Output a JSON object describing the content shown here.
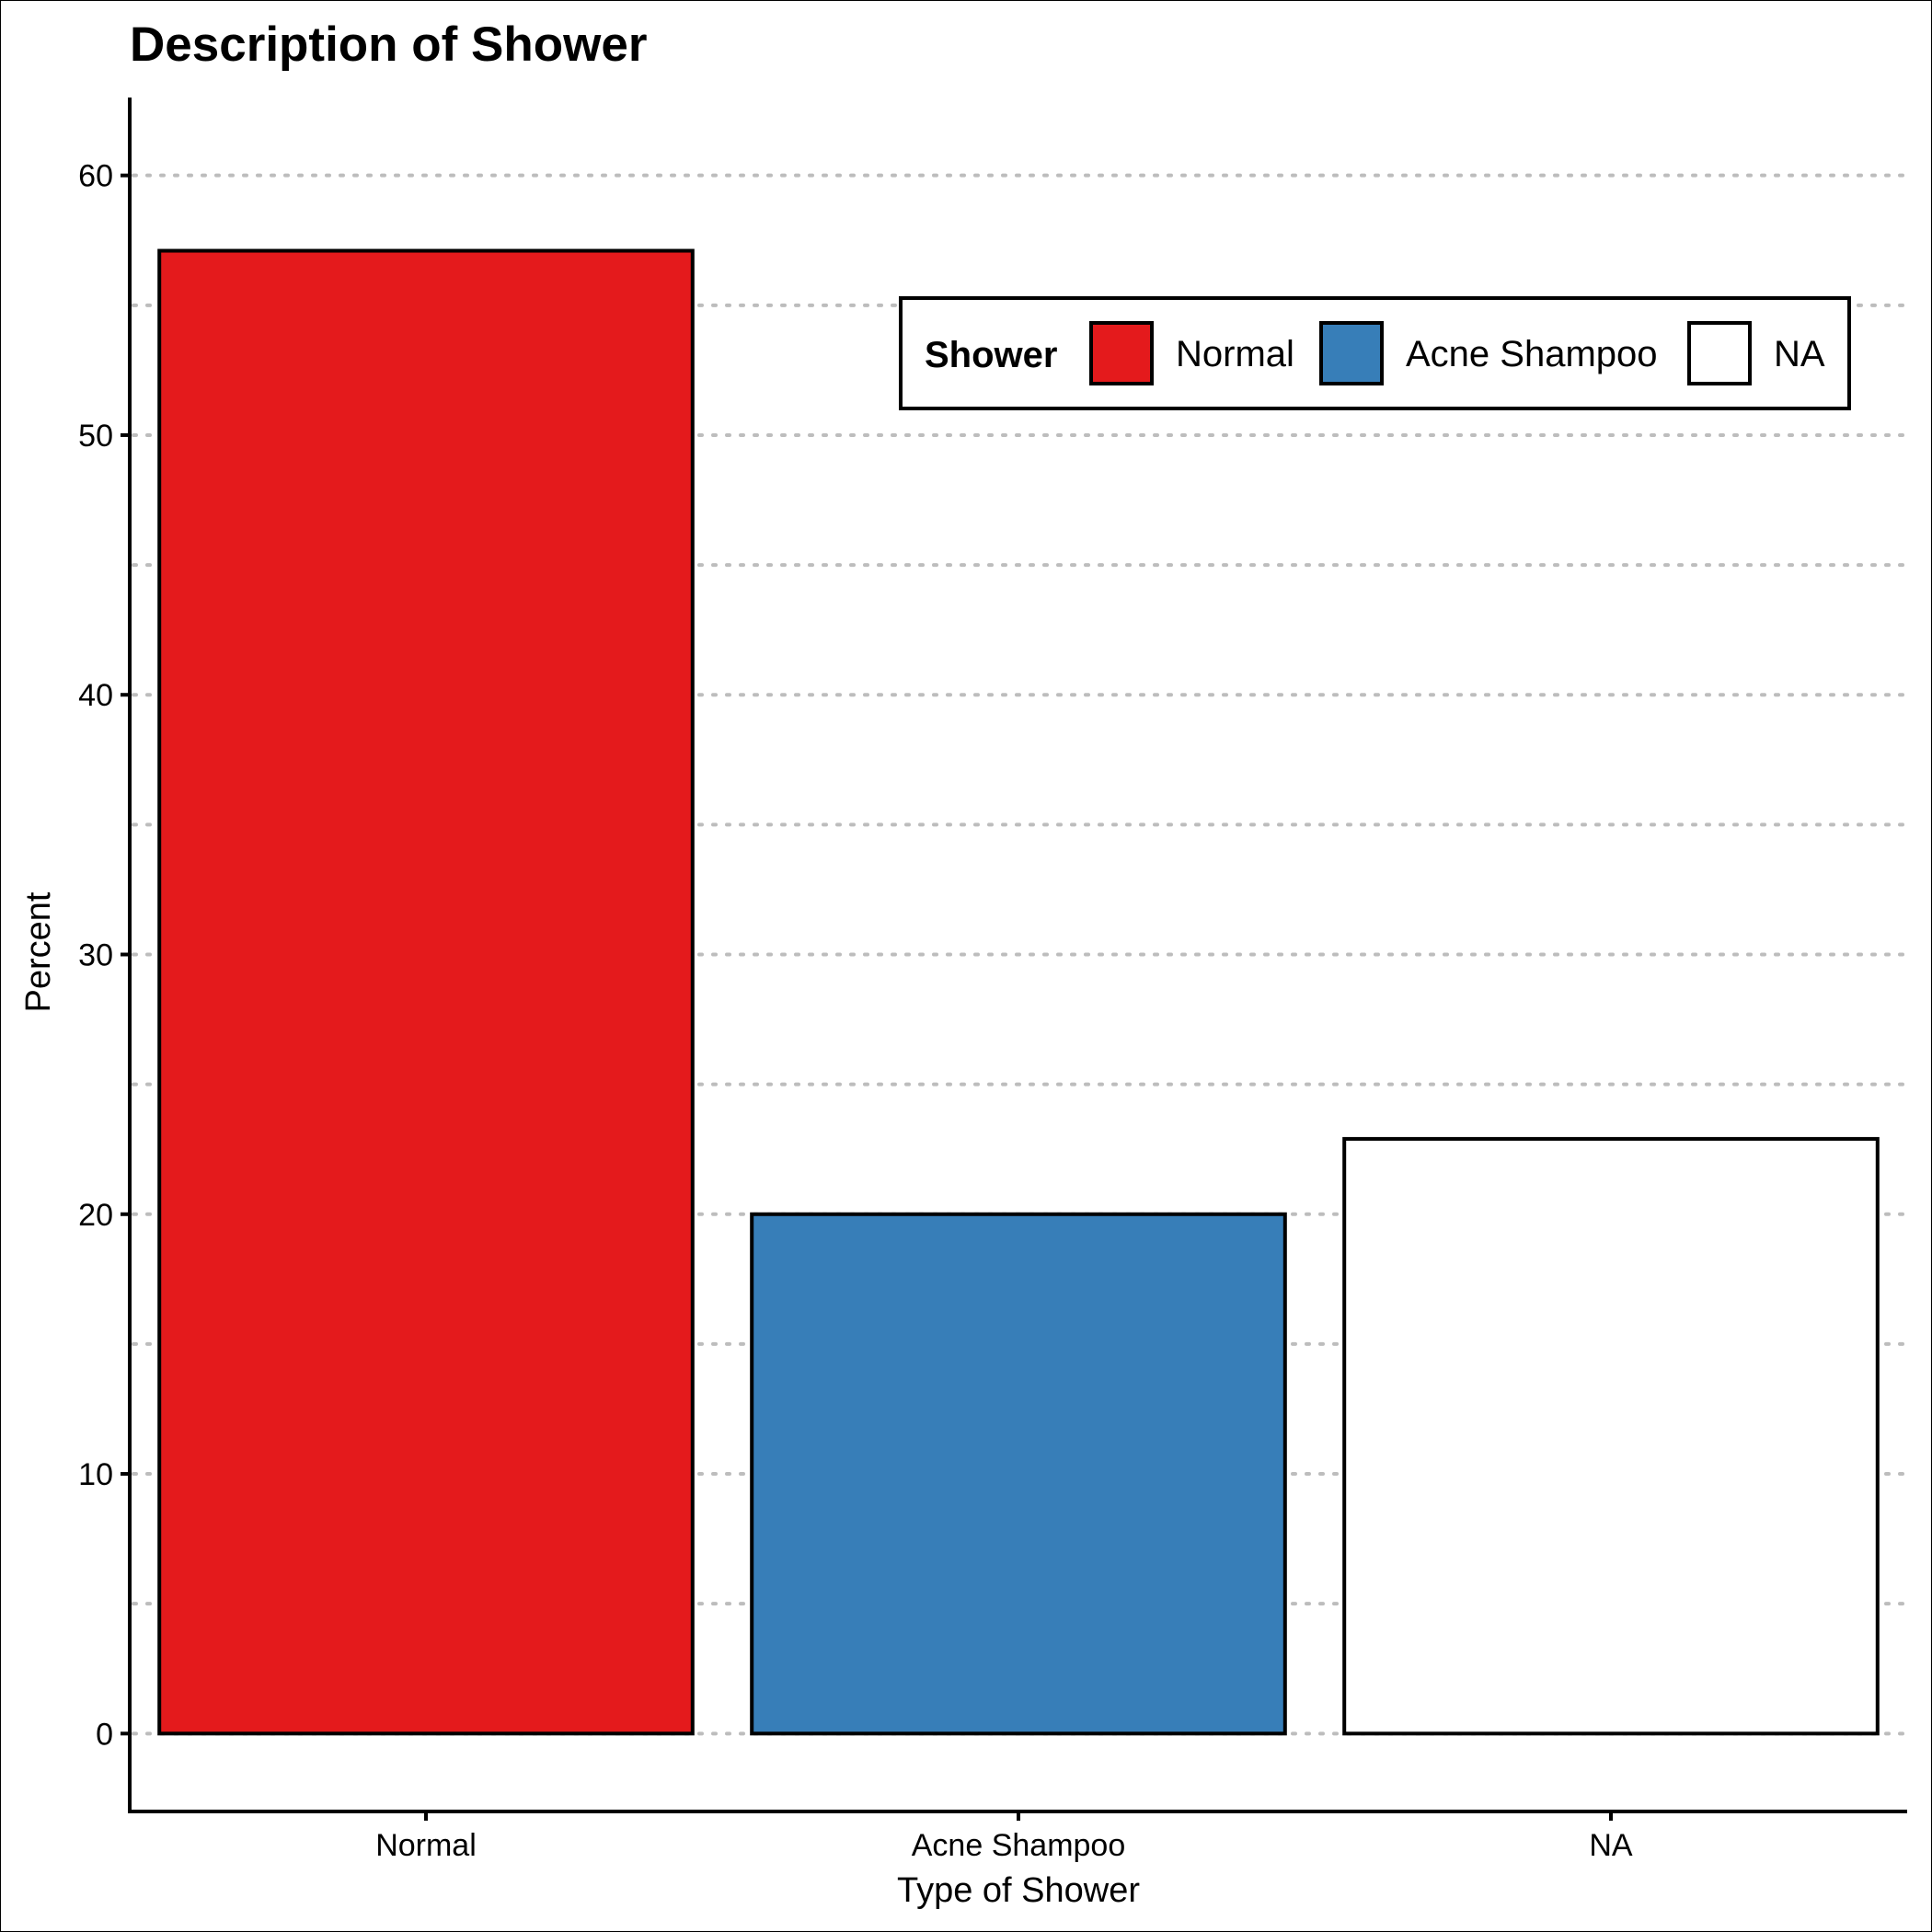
{
  "chart_data": {
    "type": "bar",
    "title": "Description of Shower",
    "xlabel": "Type of Shower",
    "ylabel": "Percent",
    "categories": [
      "Normal",
      "Acne Shampoo",
      "NA"
    ],
    "values": [
      57.1,
      20.0,
      22.9
    ],
    "colors": [
      "#E41A1C",
      "#377EB8",
      "#FFFFFF"
    ],
    "ylim": [
      -3,
      63
    ],
    "yticks": [
      0,
      10,
      20,
      30,
      40,
      50,
      60
    ],
    "grid": "horizontal dotted",
    "legend": {
      "title": "Shower",
      "placement": "top-right",
      "entries": [
        "Normal",
        "Acne Shampoo",
        "NA"
      ]
    }
  }
}
